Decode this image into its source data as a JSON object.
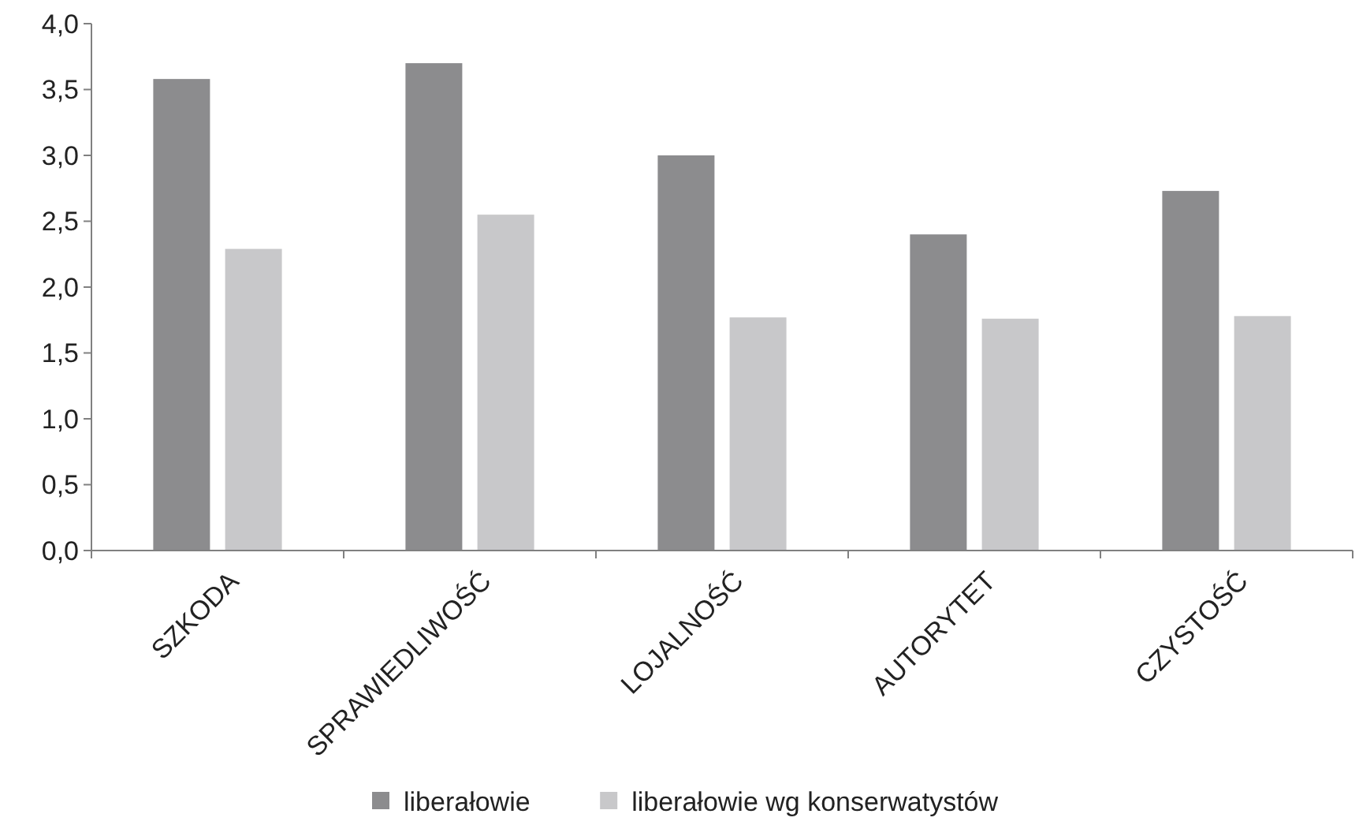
{
  "chart_data": {
    "type": "bar",
    "categories": [
      "SZKODA",
      "SPRAWIEDLIWOŚĆ",
      "LOJALNOŚĆ",
      "AUTORYTET",
      "CZYSTOŚĆ"
    ],
    "series": [
      {
        "name": "liberałowie",
        "color": "#8c8c8e",
        "values": [
          3.58,
          3.7,
          3.0,
          2.4,
          2.73
        ]
      },
      {
        "name": "liberałowie wg konserwatystów",
        "color": "#c8c8ca",
        "values": [
          2.29,
          2.55,
          1.77,
          1.76,
          1.78
        ]
      }
    ],
    "ylim": [
      0,
      4
    ],
    "yticks": [
      {
        "value": 0,
        "label": "0,0"
      },
      {
        "value": 0.5,
        "label": "0,5"
      },
      {
        "value": 1,
        "label": "1,0"
      },
      {
        "value": 1.5,
        "label": "1,5"
      },
      {
        "value": 2,
        "label": "2,0"
      },
      {
        "value": 2.5,
        "label": "2,5"
      },
      {
        "value": 3,
        "label": "3,0"
      },
      {
        "value": 3.5,
        "label": "3,5"
      },
      {
        "value": 4,
        "label": "4,0"
      }
    ],
    "grid": false,
    "legend": "bottom"
  }
}
